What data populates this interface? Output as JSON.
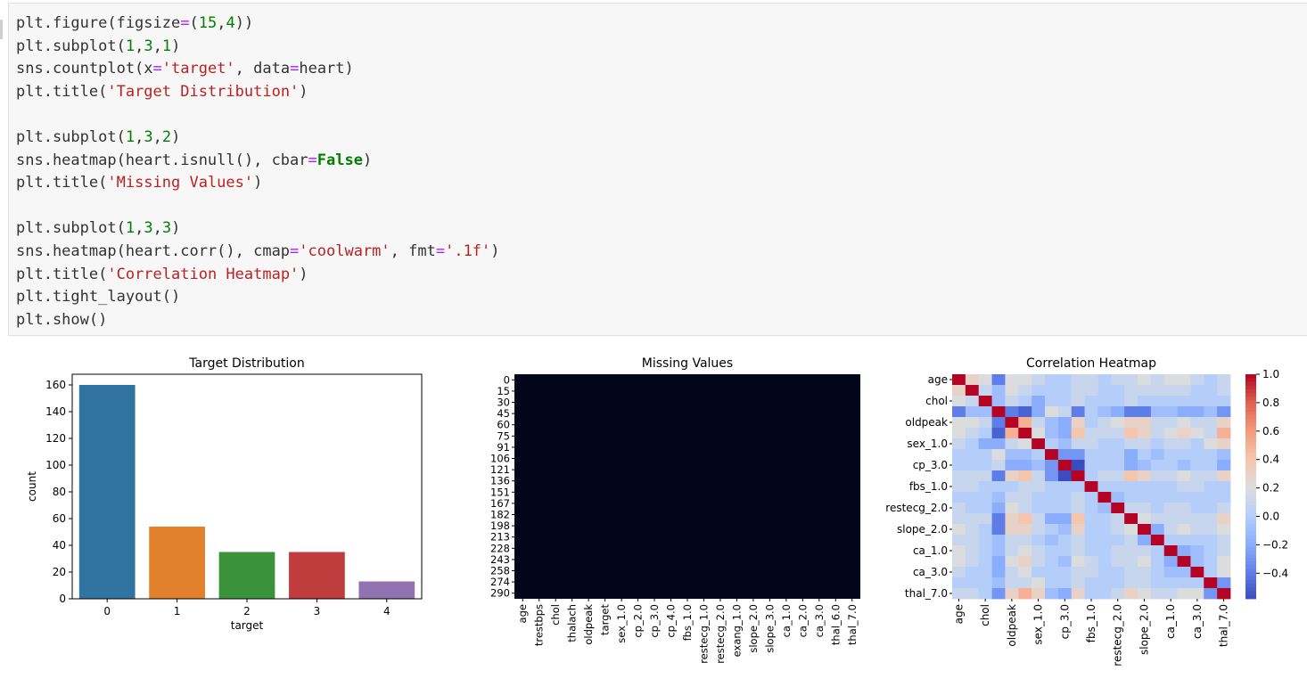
{
  "code": {
    "lines": [
      [
        [
          "t",
          "plt.figure(figsize"
        ],
        [
          "op",
          "="
        ],
        [
          "t",
          "("
        ],
        [
          "num",
          "15"
        ],
        [
          "t",
          ","
        ],
        [
          "num",
          "4"
        ],
        [
          "t",
          "))"
        ]
      ],
      [
        [
          "t",
          "plt.subplot("
        ],
        [
          "num",
          "1"
        ],
        [
          "t",
          ","
        ],
        [
          "num",
          "3"
        ],
        [
          "t",
          ","
        ],
        [
          "num",
          "1"
        ],
        [
          "t",
          ")"
        ]
      ],
      [
        [
          "t",
          "sns.countplot(x"
        ],
        [
          "op",
          "="
        ],
        [
          "str",
          "'target'"
        ],
        [
          "t",
          ", data"
        ],
        [
          "op",
          "="
        ],
        [
          "t",
          "heart)"
        ]
      ],
      [
        [
          "t",
          "plt.title("
        ],
        [
          "str",
          "'Target Distribution'"
        ],
        [
          "t",
          ")"
        ]
      ],
      [],
      [
        [
          "t",
          "plt.subplot("
        ],
        [
          "num",
          "1"
        ],
        [
          "t",
          ","
        ],
        [
          "num",
          "3"
        ],
        [
          "t",
          ","
        ],
        [
          "num",
          "2"
        ],
        [
          "t",
          ")"
        ]
      ],
      [
        [
          "t",
          "sns.heatmap(heart.isnull(), cbar"
        ],
        [
          "op",
          "="
        ],
        [
          "kw",
          "False"
        ],
        [
          "t",
          ")"
        ]
      ],
      [
        [
          "t",
          "plt.title("
        ],
        [
          "str",
          "'Missing Values'"
        ],
        [
          "t",
          ")"
        ]
      ],
      [],
      [
        [
          "t",
          "plt.subplot("
        ],
        [
          "num",
          "1"
        ],
        [
          "t",
          ","
        ],
        [
          "num",
          "3"
        ],
        [
          "t",
          ","
        ],
        [
          "num",
          "3"
        ],
        [
          "t",
          ")"
        ]
      ],
      [
        [
          "t",
          "sns.heatmap(heart.corr(), cmap"
        ],
        [
          "op",
          "="
        ],
        [
          "str",
          "'coolwarm'"
        ],
        [
          "t",
          ", fmt"
        ],
        [
          "op",
          "="
        ],
        [
          "str",
          "'.1f'"
        ],
        [
          "t",
          ")"
        ]
      ],
      [
        [
          "t",
          "plt.title("
        ],
        [
          "str",
          "'Correlation Heatmap'"
        ],
        [
          "t",
          ")"
        ]
      ],
      [
        [
          "t",
          "plt.tight_layout()"
        ]
      ],
      [
        [
          "t",
          "plt.show()"
        ]
      ]
    ]
  },
  "chart_data": [
    {
      "type": "bar",
      "title": "Target Distribution",
      "xlabel": "target",
      "ylabel": "count",
      "categories": [
        "0",
        "1",
        "2",
        "3",
        "4"
      ],
      "values": [
        160,
        54,
        35,
        35,
        13
      ],
      "colors": [
        "#3274a1",
        "#e1812c",
        "#3a923a",
        "#c03d3e",
        "#9372b2"
      ],
      "ylim": [
        0,
        168
      ],
      "yticks": [
        0,
        20,
        40,
        60,
        80,
        100,
        120,
        140,
        160
      ]
    },
    {
      "type": "heatmap",
      "title": "Missing Values",
      "row_labels": [
        "0",
        "15",
        "30",
        "45",
        "60",
        "75",
        "91",
        "106",
        "121",
        "136",
        "151",
        "167",
        "182",
        "198",
        "213",
        "228",
        "243",
        "258",
        "274",
        "290"
      ],
      "column_labels": [
        "age",
        "trestbps",
        "chol",
        "thalach",
        "oldpeak",
        "target",
        "sex_1.0",
        "cp_2.0",
        "cp_3.0",
        "cp_4.0",
        "fbs_1.0",
        "restecg_1.0",
        "restecg_2.0",
        "exang_1.0",
        "slope_2.0",
        "slope_3.0",
        "ca_1.0",
        "ca_2.0",
        "ca_3.0",
        "thal_6.0",
        "thal_7.0"
      ],
      "fill_color": "#03051a",
      "all_values": 0
    },
    {
      "type": "heatmap",
      "title": "Correlation Heatmap",
      "cmap": "coolwarm",
      "row_tick_labels": [
        "age",
        "chol",
        "oldpeak",
        "sex_1.0",
        "cp_3.0",
        "fbs_1.0",
        "restecg_2.0",
        "slope_2.0",
        "ca_1.0",
        "ca_3.0",
        "thal_7.0"
      ],
      "column_tick_labels": [
        "age",
        "chol",
        "oldpeak",
        "sex_1.0",
        "cp_3.0",
        "fbs_1.0",
        "restecg_2.0",
        "slope_2.0",
        "ca_1.0",
        "ca_3.0",
        "thal_7.0"
      ],
      "colorbar_ticks": [
        "1.0",
        "0.8",
        "0.6",
        "0.4",
        "0.2",
        "0.0",
        "−0.2",
        "−0.4"
      ],
      "colorbar_values": [
        1.0,
        0.8,
        0.6,
        0.4,
        0.2,
        0.0,
        -0.2,
        -0.4
      ],
      "vmin": -0.58,
      "vmax": 1.0,
      "matrix": [
        [
          1.0,
          0.3,
          0.2,
          -0.4,
          0.2,
          0.2,
          0.1,
          0.0,
          0.0,
          0.1,
          0.1,
          0.0,
          0.1,
          0.1,
          0.2,
          0.1,
          0.2,
          0.2,
          0.1,
          0.0,
          0.1
        ],
        [
          0.3,
          1.0,
          0.1,
          -0.1,
          0.2,
          0.1,
          0.0,
          0.0,
          0.0,
          0.1,
          0.1,
          0.0,
          0.0,
          0.1,
          0.1,
          0.1,
          0.1,
          0.1,
          0.0,
          0.0,
          0.1
        ],
        [
          0.2,
          0.1,
          1.0,
          -0.1,
          0.1,
          0.0,
          -0.2,
          0.0,
          0.0,
          0.1,
          0.0,
          0.0,
          0.0,
          0.1,
          0.0,
          0.0,
          0.0,
          0.0,
          0.0,
          0.0,
          0.0
        ],
        [
          -0.4,
          -0.1,
          -0.1,
          1.0,
          -0.4,
          -0.5,
          -0.2,
          0.2,
          0.1,
          -0.4,
          0.0,
          -0.1,
          -0.2,
          -0.4,
          -0.4,
          -0.1,
          -0.1,
          -0.2,
          -0.2,
          -0.1,
          -0.3
        ],
        [
          0.2,
          0.2,
          0.1,
          -0.4,
          1.0,
          0.5,
          0.1,
          -0.1,
          -0.2,
          0.3,
          0.0,
          0.1,
          0.2,
          0.3,
          0.3,
          0.1,
          0.1,
          0.2,
          0.1,
          0.1,
          0.3
        ],
        [
          0.2,
          0.1,
          0.0,
          -0.5,
          0.5,
          1.0,
          0.2,
          -0.1,
          -0.2,
          0.4,
          0.1,
          0.1,
          0.1,
          0.4,
          0.3,
          0.1,
          0.2,
          0.3,
          0.2,
          0.1,
          0.5
        ],
        [
          0.1,
          0.0,
          -0.2,
          -0.2,
          0.1,
          0.2,
          1.0,
          0.0,
          -0.1,
          0.1,
          0.1,
          0.0,
          0.0,
          0.1,
          0.1,
          0.0,
          0.1,
          0.1,
          0.0,
          0.2,
          0.3
        ],
        [
          0.0,
          0.0,
          0.0,
          0.2,
          -0.1,
          -0.1,
          0.0,
          1.0,
          -0.3,
          -0.3,
          0.0,
          0.0,
          0.0,
          -0.2,
          0.0,
          -0.1,
          0.0,
          0.0,
          0.0,
          0.0,
          -0.1
        ],
        [
          0.0,
          0.0,
          0.0,
          0.1,
          -0.2,
          -0.2,
          -0.1,
          -0.3,
          1.0,
          -0.6,
          0.0,
          0.0,
          0.0,
          -0.2,
          -0.1,
          0.0,
          0.0,
          -0.1,
          0.0,
          0.0,
          -0.2
        ],
        [
          0.1,
          0.1,
          0.1,
          -0.4,
          0.3,
          0.4,
          0.1,
          -0.3,
          -0.6,
          1.0,
          0.0,
          0.1,
          0.1,
          0.4,
          0.3,
          0.1,
          0.1,
          0.2,
          0.1,
          0.1,
          0.3
        ],
        [
          0.1,
          0.1,
          0.0,
          0.0,
          0.0,
          0.1,
          0.1,
          0.0,
          0.0,
          0.0,
          1.0,
          0.0,
          0.0,
          0.0,
          0.0,
          0.0,
          0.0,
          0.1,
          0.1,
          0.0,
          0.0
        ],
        [
          0.0,
          0.0,
          0.0,
          -0.1,
          0.1,
          0.1,
          0.0,
          0.0,
          0.0,
          0.1,
          0.0,
          1.0,
          -0.1,
          0.0,
          0.0,
          0.0,
          0.0,
          0.0,
          0.0,
          0.0,
          0.0
        ],
        [
          0.1,
          0.0,
          0.0,
          -0.2,
          0.2,
          0.1,
          0.0,
          0.0,
          0.0,
          0.1,
          0.0,
          -0.1,
          1.0,
          0.1,
          0.1,
          0.0,
          0.1,
          0.1,
          0.0,
          0.0,
          0.1
        ],
        [
          0.1,
          0.1,
          0.1,
          -0.4,
          0.3,
          0.4,
          0.1,
          -0.2,
          -0.2,
          0.4,
          0.0,
          0.0,
          0.1,
          1.0,
          0.2,
          0.1,
          0.1,
          0.1,
          0.1,
          0.1,
          0.3
        ],
        [
          0.2,
          0.1,
          0.0,
          -0.4,
          0.3,
          0.3,
          0.1,
          0.0,
          -0.1,
          0.3,
          0.0,
          0.0,
          0.1,
          0.2,
          1.0,
          -0.2,
          0.1,
          0.2,
          0.1,
          0.1,
          0.2
        ],
        [
          0.1,
          0.1,
          0.0,
          -0.1,
          0.1,
          0.1,
          0.0,
          -0.1,
          0.0,
          0.1,
          0.0,
          0.0,
          0.0,
          0.1,
          -0.2,
          1.0,
          0.0,
          0.0,
          0.0,
          0.0,
          0.1
        ],
        [
          0.2,
          0.1,
          0.0,
          -0.1,
          0.1,
          0.2,
          0.1,
          0.0,
          0.0,
          0.1,
          0.0,
          0.0,
          0.1,
          0.1,
          0.1,
          0.0,
          1.0,
          -0.2,
          -0.1,
          0.0,
          0.1
        ],
        [
          0.2,
          0.1,
          0.0,
          -0.2,
          0.2,
          0.3,
          0.1,
          0.0,
          -0.1,
          0.2,
          0.1,
          0.0,
          0.1,
          0.1,
          0.2,
          0.0,
          -0.2,
          1.0,
          -0.1,
          0.0,
          0.2
        ],
        [
          0.1,
          0.0,
          0.0,
          -0.2,
          0.1,
          0.2,
          0.0,
          0.0,
          0.0,
          0.1,
          0.1,
          0.0,
          0.0,
          0.1,
          0.1,
          0.0,
          -0.1,
          -0.1,
          1.0,
          0.0,
          0.2
        ],
        [
          0.0,
          0.0,
          0.0,
          -0.1,
          0.1,
          0.1,
          0.2,
          0.0,
          0.0,
          0.1,
          0.0,
          0.0,
          0.0,
          0.1,
          0.1,
          0.0,
          0.0,
          0.0,
          0.0,
          1.0,
          -0.3
        ],
        [
          0.1,
          0.1,
          0.0,
          -0.3,
          0.3,
          0.5,
          0.3,
          -0.1,
          -0.2,
          0.3,
          0.0,
          0.0,
          0.1,
          0.3,
          0.2,
          0.1,
          0.1,
          0.2,
          0.2,
          -0.3,
          1.0
        ]
      ]
    }
  ]
}
